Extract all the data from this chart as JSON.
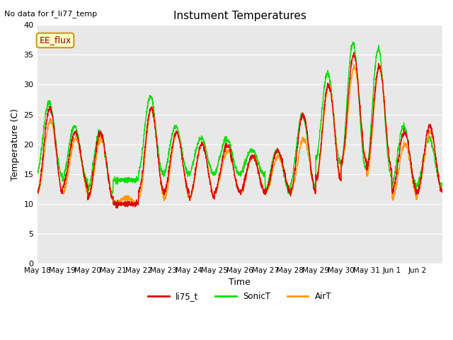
{
  "title": "Instument Temperatures",
  "xlabel": "Time",
  "ylabel": "Temperature (C)",
  "top_left_text": "No data for f_li77_temp",
  "legend_box_text": "EE_flux",
  "ylim": [
    0,
    40
  ],
  "yticks": [
    0,
    5,
    10,
    15,
    20,
    25,
    30,
    35,
    40
  ],
  "colors": {
    "li75_t": "#dd0000",
    "SonicT": "#00dd00",
    "AirT": "#ff9900"
  },
  "x_tick_labels": [
    "May 18",
    "May 19",
    "May 20",
    "May 21",
    "May 22",
    "May 23",
    "May 24",
    "May 25",
    "May 26",
    "May 27",
    "May 28",
    "May 29",
    "May 30",
    "May 31",
    "Jun 1",
    "Jun 2"
  ],
  "day_peaks_li75": [
    26,
    22,
    22,
    10,
    26,
    22,
    20,
    20,
    18,
    19,
    25,
    30,
    35,
    33,
    22,
    23
  ],
  "day_troughs_li75": [
    12,
    13,
    11,
    10,
    12,
    12,
    11,
    12,
    12,
    12,
    12,
    14,
    17,
    16,
    12,
    12
  ],
  "day_peaks_sonic": [
    27,
    23,
    22,
    14,
    28,
    23,
    21,
    21,
    19,
    19,
    25,
    32,
    37,
    36,
    23,
    21
  ],
  "day_troughs_sonic": [
    15,
    14,
    12,
    14,
    15,
    15,
    15,
    15,
    15,
    12,
    13,
    17,
    16,
    15,
    13,
    13
  ],
  "day_peaks_air": [
    24,
    21,
    21,
    11,
    26,
    22,
    20,
    19,
    18,
    18,
    21,
    30,
    33,
    33,
    20,
    22
  ],
  "day_troughs_air": [
    12,
    12,
    11,
    10,
    11,
    11,
    11,
    12,
    12,
    12,
    12,
    14,
    17,
    15,
    11,
    12
  ],
  "bg_color": "#e8e8e8"
}
